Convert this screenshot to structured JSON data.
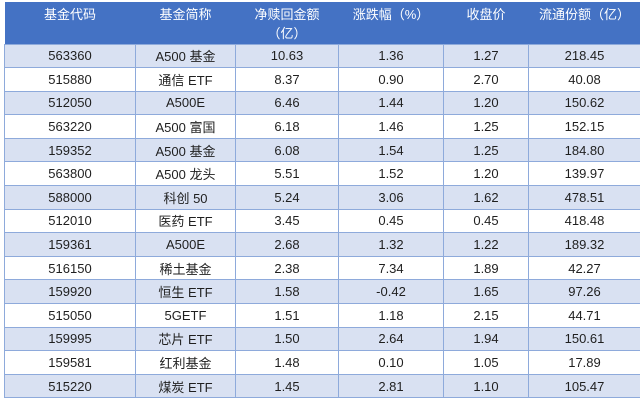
{
  "chart_data": {
    "type": "table",
    "columns": [
      "基金代码",
      "基金简称",
      "净赎回金额\n（亿）",
      "涨跌幅（%）",
      "收盘价",
      "流通份额（亿）"
    ],
    "rows": [
      [
        "563360",
        "A500 基金",
        "10.63",
        "1.36",
        "1.27",
        "218.45"
      ],
      [
        "515880",
        "通信 ETF",
        "8.37",
        "0.90",
        "2.70",
        "40.08"
      ],
      [
        "512050",
        "A500E",
        "6.46",
        "1.44",
        "1.20",
        "150.62"
      ],
      [
        "563220",
        "A500 富国",
        "6.18",
        "1.46",
        "1.25",
        "152.15"
      ],
      [
        "159352",
        "A500 基金",
        "6.08",
        "1.54",
        "1.25",
        "184.80"
      ],
      [
        "563800",
        "A500 龙头",
        "5.51",
        "1.52",
        "1.20",
        "139.97"
      ],
      [
        "588000",
        "科创 50",
        "5.24",
        "3.06",
        "1.62",
        "478.51"
      ],
      [
        "512010",
        "医药 ETF",
        "3.45",
        "0.45",
        "0.45",
        "418.48"
      ],
      [
        "159361",
        "A500E",
        "2.68",
        "1.32",
        "1.22",
        "189.32"
      ],
      [
        "516150",
        "稀土基金",
        "2.38",
        "7.34",
        "1.89",
        "42.27"
      ],
      [
        "159920",
        "恒生 ETF",
        "1.58",
        "-0.42",
        "1.65",
        "97.26"
      ],
      [
        "515050",
        "5GETF",
        "1.51",
        "1.18",
        "2.15",
        "44.71"
      ],
      [
        "159995",
        "芯片 ETF",
        "1.50",
        "2.64",
        "1.94",
        "150.61"
      ],
      [
        "159581",
        "红利基金",
        "1.48",
        "0.10",
        "1.05",
        "17.89"
      ],
      [
        "515220",
        "煤炭 ETF",
        "1.45",
        "2.81",
        "1.10",
        "105.47"
      ]
    ],
    "layout": {
      "banding": "odd-rows-shaded",
      "legend": "none",
      "grid": "on"
    }
  },
  "colors": {
    "header_bg": "#4472C4",
    "header_text": "#FFFFFF",
    "band_row_bg": "#D9E1F2",
    "plain_row_bg": "#FFFFFF",
    "grid_border": "#8EAADB",
    "body_text": "#1F1F1F"
  }
}
